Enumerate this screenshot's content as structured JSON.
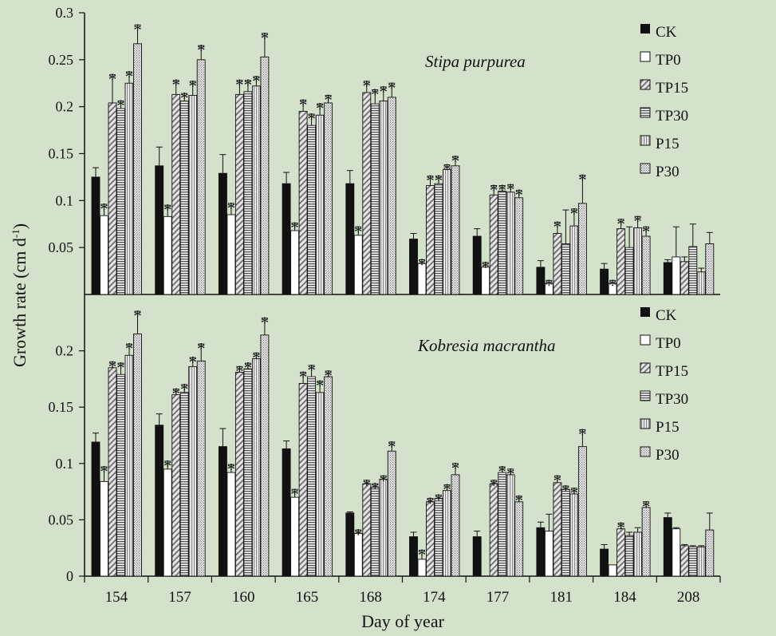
{
  "chart_data": {
    "type": "bar",
    "xlabel": "Day of year",
    "ylabel_main": "Growth rate (cm d",
    "ylabel_sup": "-1",
    "ylabel_close": ")",
    "categories": [
      "154",
      "157",
      "160",
      "165",
      "168",
      "174",
      "177",
      "181",
      "184",
      "208"
    ],
    "series_names": [
      "CK",
      "TP0",
      "TP15",
      "TP30",
      "P15",
      "P30"
    ],
    "colors": {
      "ck": "#111111",
      "tp0": "#ffffff",
      "fill": "#bcbcbc",
      "frame": "#111111"
    },
    "panels": [
      {
        "title": "Stipa purpurea",
        "ylim": [
          0,
          0.3
        ],
        "yticks": [
          0.05,
          0.1,
          0.15,
          0.2,
          0.25,
          0.3
        ],
        "ytick_labels": [
          "0.05",
          "0.1",
          "0.15",
          "0.2",
          "0.25",
          "0.3"
        ],
        "series": [
          {
            "name": "CK",
            "values": [
              0.125,
              0.137,
              0.129,
              0.118,
              0.118,
              0.059,
              0.062,
              0.029,
              0.027,
              0.034
            ],
            "errors": [
              0.01,
              0.02,
              0.02,
              0.012,
              0.014,
              0.006,
              0.008,
              0.007,
              0.006,
              0.003
            ],
            "sig": [
              false,
              false,
              false,
              false,
              false,
              false,
              false,
              false,
              false,
              false
            ]
          },
          {
            "name": "TP0",
            "values": [
              0.084,
              0.083,
              0.085,
              0.068,
              0.063,
              0.033,
              0.029,
              0.012,
              0.012,
              0.04
            ],
            "errors": [
              0.012,
              0.012,
              0.012,
              0.008,
              0.009,
              0.004,
              0.005,
              0.003,
              0.003,
              0.032
            ],
            "sig": [
              true,
              true,
              true,
              true,
              true,
              true,
              true,
              true,
              true,
              false
            ]
          },
          {
            "name": "TP15",
            "values": [
              0.204,
              0.213,
              0.213,
              0.195,
              0.215,
              0.116,
              0.106,
              0.065,
              0.07,
              0.035
            ],
            "errors": [
              0.03,
              0.015,
              0.015,
              0.012,
              0.012,
              0.01,
              0.01,
              0.012,
              0.01,
              0.005
            ],
            "sig": [
              true,
              true,
              true,
              true,
              true,
              true,
              true,
              true,
              true,
              false
            ]
          },
          {
            "name": "TP30",
            "values": [
              0.198,
              0.206,
              0.216,
              0.18,
              0.203,
              0.118,
              0.11,
              0.054,
              0.05,
              0.051
            ],
            "errors": [
              0.008,
              0.008,
              0.012,
              0.012,
              0.015,
              0.008,
              0.006,
              0.036,
              0.022,
              0.024
            ],
            "sig": [
              true,
              true,
              true,
              true,
              true,
              true,
              true,
              false,
              false,
              false
            ]
          },
          {
            "name": "P15",
            "values": [
              0.225,
              0.212,
              0.222,
              0.191,
              0.206,
              0.133,
              0.109,
              0.073,
              0.071,
              0.024
            ],
            "errors": [
              0.012,
              0.015,
              0.01,
              0.012,
              0.015,
              0.005,
              0.008,
              0.018,
              0.012,
              0.004
            ],
            "sig": [
              true,
              true,
              true,
              true,
              true,
              true,
              true,
              true,
              true,
              false
            ]
          },
          {
            "name": "P30",
            "values": [
              0.267,
              0.25,
              0.253,
              0.204,
              0.21,
              0.137,
              0.103,
              0.097,
              0.062,
              0.054
            ],
            "errors": [
              0.02,
              0.015,
              0.025,
              0.008,
              0.015,
              0.01,
              0.008,
              0.03,
              0.01,
              0.012
            ],
            "sig": [
              true,
              true,
              true,
              true,
              true,
              true,
              true,
              true,
              true,
              false
            ]
          }
        ]
      },
      {
        "title": "Kobresia macrantha",
        "ylim": [
          0,
          0.25
        ],
        "yticks": [
          0,
          0.05,
          0.1,
          0.15,
          0.2
        ],
        "ytick_labels": [
          "0",
          "0.05",
          "0.1",
          "0.15",
          "0.2"
        ],
        "series": [
          {
            "name": "CK",
            "values": [
              0.119,
              0.134,
              0.115,
              0.113,
              0.056,
              0.035,
              0.035,
              0.043,
              0.024,
              0.052
            ],
            "errors": [
              0.008,
              0.01,
              0.016,
              0.007,
              0.001,
              0.004,
              0.005,
              0.005,
              0.004,
              0.004
            ],
            "sig": [
              false,
              false,
              false,
              false,
              false,
              false,
              false,
              false,
              false,
              false
            ]
          },
          {
            "name": "TP0",
            "values": [
              0.084,
              0.095,
              0.092,
              0.07,
              0.038,
              0.015,
              0.0,
              0.04,
              0.01,
              0.042
            ],
            "errors": [
              0.013,
              0.007,
              0.007,
              0.007,
              0.003,
              0.008,
              0.0,
              0.015,
              0.0,
              0.001
            ],
            "sig": [
              true,
              true,
              true,
              true,
              true,
              true,
              false,
              false,
              false,
              false
            ]
          },
          {
            "name": "TP15",
            "values": [
              0.185,
              0.161,
              0.181,
              0.171,
              0.082,
              0.066,
              0.082,
              0.083,
              0.042,
              0.027
            ],
            "errors": [
              0.005,
              0.005,
              0.005,
              0.01,
              0.003,
              0.003,
              0.003,
              0.006,
              0.005,
              0.001
            ],
            "sig": [
              true,
              true,
              true,
              true,
              true,
              true,
              true,
              true,
              true,
              false
            ]
          },
          {
            "name": "TP30",
            "values": [
              0.179,
              0.163,
              0.184,
              0.177,
              0.079,
              0.069,
              0.092,
              0.077,
              0.036,
              0.026
            ],
            "errors": [
              0.01,
              0.007,
              0.005,
              0.01,
              0.003,
              0.003,
              0.005,
              0.003,
              0.003,
              0.001
            ],
            "sig": [
              true,
              true,
              true,
              true,
              true,
              true,
              true,
              true,
              false,
              false
            ]
          },
          {
            "name": "P15",
            "values": [
              0.196,
              0.186,
              0.193,
              0.163,
              0.086,
              0.076,
              0.09,
              0.073,
              0.039,
              0.026
            ],
            "errors": [
              0.01,
              0.008,
              0.005,
              0.01,
              0.003,
              0.005,
              0.005,
              0.005,
              0.004,
              0.001
            ],
            "sig": [
              true,
              true,
              true,
              true,
              true,
              true,
              true,
              true,
              false,
              false
            ]
          },
          {
            "name": "P30",
            "values": [
              0.215,
              0.191,
              0.214,
              0.177,
              0.111,
              0.09,
              0.066,
              0.115,
              0.061,
              0.041
            ],
            "errors": [
              0.02,
              0.015,
              0.015,
              0.005,
              0.008,
              0.01,
              0.005,
              0.015,
              0.005,
              0.015
            ],
            "sig": [
              true,
              true,
              true,
              true,
              true,
              true,
              true,
              true,
              true,
              false
            ]
          }
        ]
      }
    ]
  }
}
